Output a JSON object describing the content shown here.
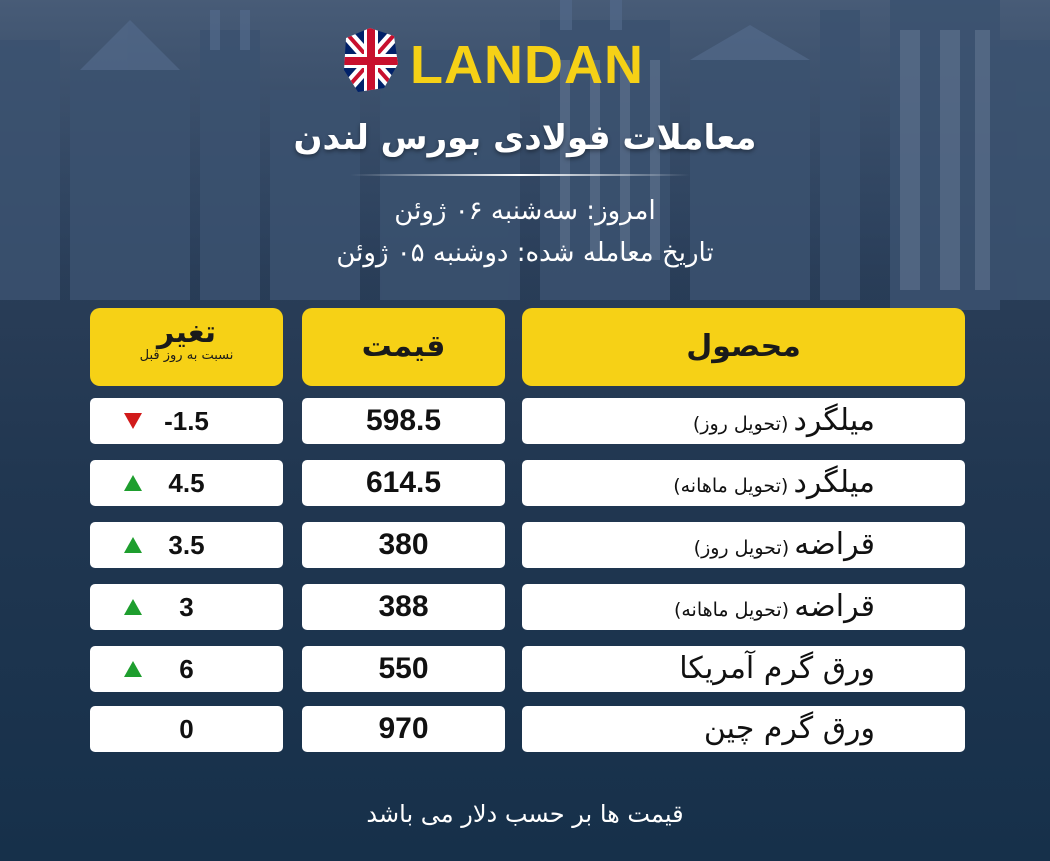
{
  "header": {
    "brand": "LANDAN",
    "title": "معاملات فولادی بورس لندن",
    "today": "امروز: سه‌شنبه ۰۶ ژوئن",
    "trade_date": "تاریخ معامله شده: دوشنبه ۰۵ ژوئن"
  },
  "columns": {
    "product": "محصول",
    "price": "قیمت",
    "change": "تغیر",
    "change_sub": "نسبت به روز قبل"
  },
  "rows": [
    {
      "product": "میلگرد",
      "note": "(تحویل روز)",
      "price": "598.5",
      "change": "-1.5",
      "direction": "down"
    },
    {
      "product": "میلگرد",
      "note": "(تحویل ماهانه)",
      "price": "614.5",
      "change": "4.5",
      "direction": "up"
    },
    {
      "product": "قراضه",
      "note": "(تحویل روز)",
      "price": "380",
      "change": "3.5",
      "direction": "up"
    },
    {
      "product": "قراضه",
      "note": "(تحویل ماهانه)",
      "price": "388",
      "change": "3",
      "direction": "up"
    },
    {
      "product": "ورق گرم آمریکا",
      "note": "",
      "price": "550",
      "change": "6",
      "direction": "up"
    },
    {
      "product": "ورق گرم چین",
      "note": "",
      "price": "970",
      "change": "0",
      "direction": "none"
    }
  ],
  "footer": "قیمت ها بر حسب دلار می باشد",
  "colors": {
    "accent": "#f6d116",
    "up": "#1e9e2e",
    "down": "#d11a1a",
    "background": "#213751"
  }
}
